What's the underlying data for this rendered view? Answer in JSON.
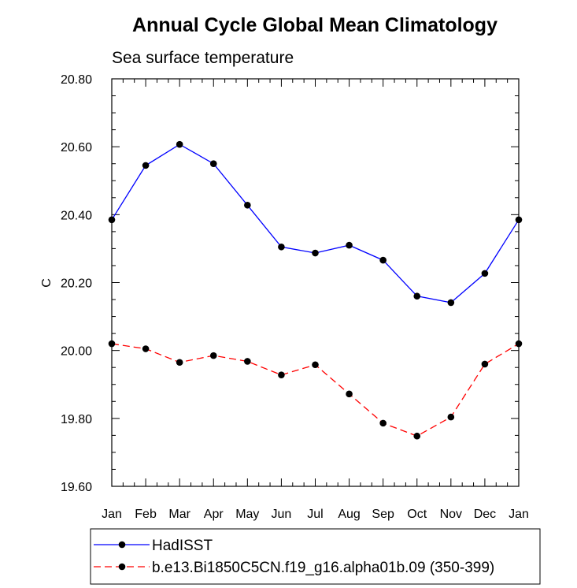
{
  "chart_data": {
    "type": "line",
    "title": "Annual Cycle Global Mean Climatology",
    "subtitle": "Sea surface temperature",
    "xlabel": "",
    "ylabel": "C",
    "categories": [
      "Jan",
      "Feb",
      "Mar",
      "Apr",
      "May",
      "Jun",
      "Jul",
      "Aug",
      "Sep",
      "Oct",
      "Nov",
      "Dec",
      "Jan"
    ],
    "ylim": [
      19.6,
      20.8
    ],
    "yticks": [
      "20.80",
      "20.60",
      "20.40",
      "20.20",
      "20.00",
      "19.80",
      "19.60"
    ],
    "ytick_values": [
      20.8,
      20.6,
      20.4,
      20.2,
      20.0,
      19.8,
      19.6
    ],
    "grid": false,
    "legend_position": "bottom",
    "series": [
      {
        "name": "HadISST",
        "color": "#0000ff",
        "style": "solid",
        "values": [
          20.385,
          20.545,
          20.607,
          20.55,
          20.428,
          20.305,
          20.287,
          20.31,
          20.266,
          20.16,
          20.141,
          20.227,
          20.385
        ]
      },
      {
        "name": "b.e13.Bi1850C5CN.f19_g16.alpha01b.09 (350-399)",
        "color": "#ff0000",
        "style": "dashed",
        "values": [
          20.02,
          20.005,
          19.965,
          19.985,
          19.968,
          19.928,
          19.958,
          19.872,
          19.786,
          19.748,
          19.804,
          19.96,
          20.02
        ]
      }
    ]
  }
}
